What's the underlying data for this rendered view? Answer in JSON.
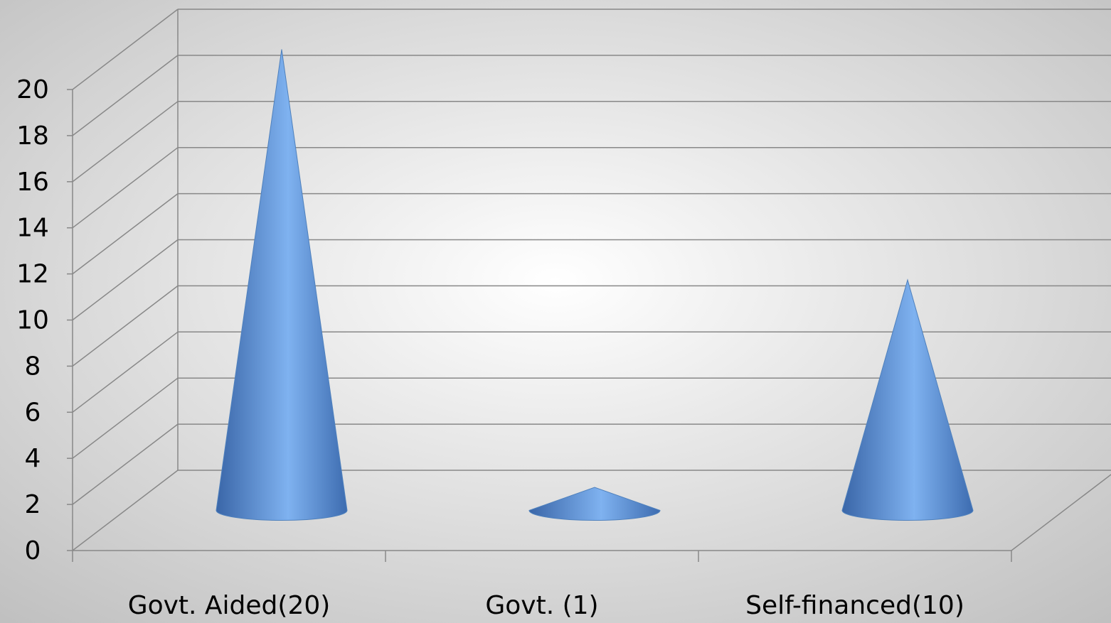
{
  "chart_data": {
    "type": "cone",
    "categories": [
      "Govt. Aided(20)",
      "Govt. (1)",
      "Self-financed(10)"
    ],
    "values": [
      20,
      1,
      10
    ],
    "color": "#4f81bd",
    "ylim": [
      0,
      20
    ],
    "yticks": [
      0,
      2,
      4,
      6,
      8,
      10,
      12,
      14,
      16,
      18,
      20
    ],
    "grid": true
  }
}
